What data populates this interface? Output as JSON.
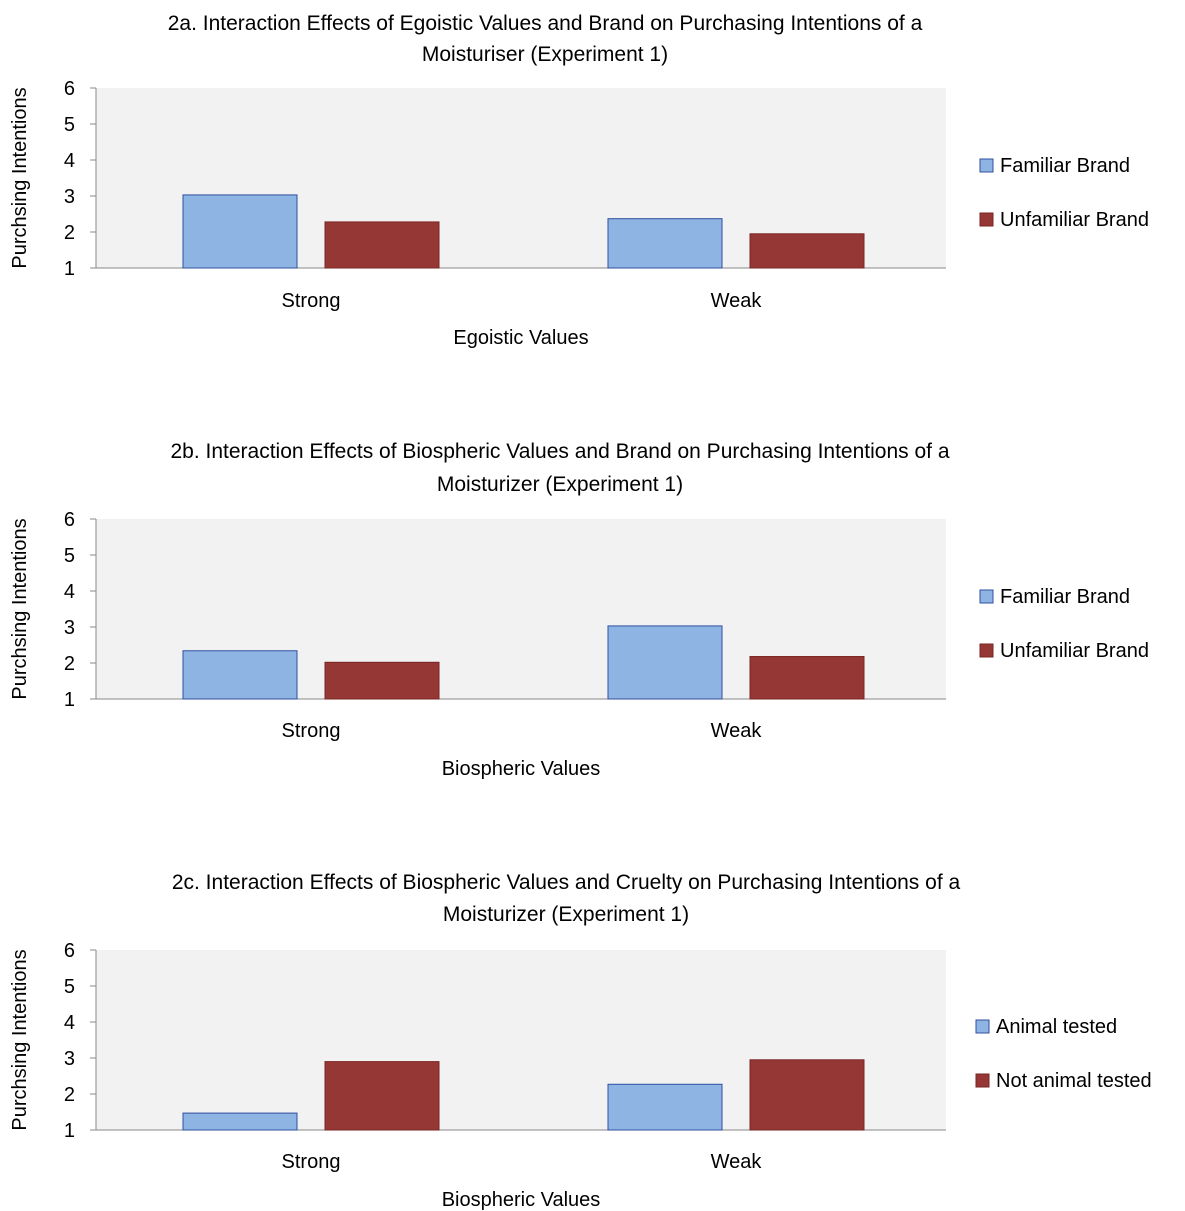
{
  "colors": {
    "plot_bg": "#f2f2f2",
    "axis": "#888888",
    "series_1": "#8eb4e3",
    "series_1_border": "#2f4fa0",
    "series_2": "#953735",
    "series_2_border": "#7a2523"
  },
  "chart_data": [
    {
      "type": "bar",
      "title_line1": "2a. Interaction Effects of Egoistic Values and Brand on Purchasing Intentions of a",
      "title_line2": "Moisturiser (Experiment 1)",
      "xlabel": "Egoistic Values",
      "ylabel": "Purchsing Intentions",
      "ylim": [
        1,
        6
      ],
      "yticks": [
        "1",
        "2",
        "3",
        "4",
        "5",
        "6"
      ],
      "categories": [
        "Strong",
        "Weak"
      ],
      "legend_position": "right",
      "grid": false,
      "series": [
        {
          "name": "Familiar Brand",
          "values": [
            3.03,
            2.37
          ]
        },
        {
          "name": "Unfamiliar Brand",
          "values": [
            2.28,
            1.95
          ]
        }
      ]
    },
    {
      "type": "bar",
      "title_line1": "2b. Interaction Effects of Biospheric Values and Brand on Purchasing Intentions of a",
      "title_line2": "Moisturizer (Experiment 1)",
      "xlabel": "Biospheric Values",
      "ylabel": "Purchsing Intentions",
      "ylim": [
        1,
        6
      ],
      "yticks": [
        "1",
        "2",
        "3",
        "4",
        "5",
        "6"
      ],
      "categories": [
        "Strong",
        "Weak"
      ],
      "legend_position": "right",
      "grid": false,
      "series": [
        {
          "name": "Familiar Brand",
          "values": [
            2.34,
            3.03
          ]
        },
        {
          "name": "Unfamiliar Brand",
          "values": [
            2.02,
            2.18
          ]
        }
      ]
    },
    {
      "type": "bar",
      "title_line1": "2c. Interaction Effects of Biospheric Values and Cruelty on Purchasing Intentions of a",
      "title_line2": "Moisturizer (Experiment 1)",
      "xlabel": "Biospheric Values",
      "ylabel": "Purchsing Intentions",
      "ylim": [
        1,
        6
      ],
      "yticks": [
        "1",
        "2",
        "3",
        "4",
        "5",
        "6"
      ],
      "categories": [
        "Strong",
        "Weak"
      ],
      "legend_position": "right",
      "grid": false,
      "series": [
        {
          "name": "Animal tested",
          "values": [
            1.47,
            2.27
          ]
        },
        {
          "name": "Not animal tested",
          "values": [
            2.9,
            2.95
          ]
        }
      ]
    }
  ]
}
